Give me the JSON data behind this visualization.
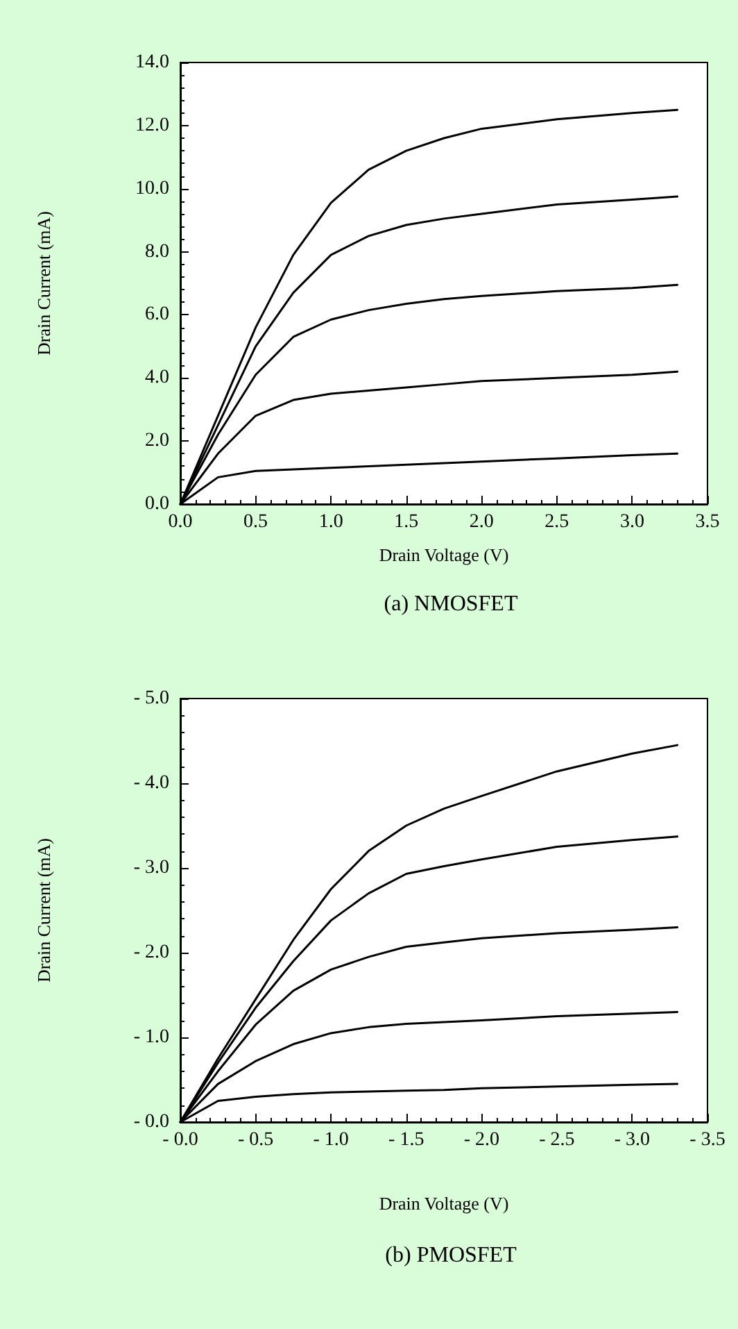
{
  "chart_data": [
    {
      "type": "line",
      "title": "(a) NMOSFET",
      "xlabel": "Drain Voltage (V)",
      "ylabel": "Drain Current (mA)",
      "marker": "none",
      "xlim": [
        0,
        3.5
      ],
      "xticks": [
        {
          "value": 0,
          "label": "0.0"
        },
        {
          "value": 0.5,
          "label": "0.5"
        },
        {
          "value": 1,
          "label": "1.0"
        },
        {
          "value": 1.5,
          "label": "1.5"
        },
        {
          "value": 2,
          "label": "2.0"
        },
        {
          "value": 2.5,
          "label": "2.5"
        },
        {
          "value": 3,
          "label": "3.0"
        },
        {
          "value": 3.5,
          "label": "3.5"
        }
      ],
      "ylim": [
        0,
        14
      ],
      "yticks": [
        {
          "value": 0,
          "label": "0.0"
        },
        {
          "value": 2,
          "label": "2.0"
        },
        {
          "value": 4,
          "label": "4.0"
        },
        {
          "value": 6,
          "label": "6.0"
        },
        {
          "value": 8,
          "label": "8.0"
        },
        {
          "value": 10,
          "label": "10.0"
        },
        {
          "value": 12,
          "label": "12.0"
        },
        {
          "value": 14,
          "label": "14.0"
        }
      ],
      "x": [
        0,
        0.25,
        0.5,
        0.75,
        1,
        1.25,
        1.5,
        1.75,
        2,
        2.5,
        3,
        3.3
      ],
      "series": [
        {
          "color": "#000000",
          "values": [
            0,
            2.8,
            5.6,
            7.9,
            9.55,
            10.6,
            11.2,
            11.6,
            11.9,
            12.2,
            12.4,
            12.5
          ]
        },
        {
          "color": "#000000",
          "values": [
            0,
            2.5,
            5.0,
            6.7,
            7.9,
            8.5,
            8.85,
            9.05,
            9.2,
            9.5,
            9.65,
            9.75
          ]
        },
        {
          "color": "#000000",
          "values": [
            0,
            2.2,
            4.1,
            5.3,
            5.85,
            6.15,
            6.35,
            6.5,
            6.6,
            6.75,
            6.85,
            6.95
          ]
        },
        {
          "color": "#000000",
          "values": [
            0,
            1.6,
            2.8,
            3.3,
            3.5,
            3.6,
            3.7,
            3.8,
            3.9,
            4.0,
            4.1,
            4.2
          ]
        },
        {
          "color": "#000000",
          "values": [
            0,
            0.85,
            1.05,
            1.1,
            1.15,
            1.2,
            1.25,
            1.3,
            1.35,
            1.45,
            1.55,
            1.6
          ]
        }
      ]
    },
    {
      "type": "line",
      "title": "(b) PMOSFET",
      "xlabel": "Drain Voltage (V)",
      "ylabel": "Drain Current (mA)",
      "marker": "none",
      "xlim": [
        0,
        -3.5
      ],
      "xticks": [
        {
          "value": 0,
          "label": "- 0.0"
        },
        {
          "value": -0.5,
          "label": "- 0.5"
        },
        {
          "value": -1,
          "label": "- 1.0"
        },
        {
          "value": -1.5,
          "label": "- 1.5"
        },
        {
          "value": -2,
          "label": "- 2.0"
        },
        {
          "value": -2.5,
          "label": "- 2.5"
        },
        {
          "value": -3,
          "label": "- 3.0"
        },
        {
          "value": -3.5,
          "label": "- 3.5"
        }
      ],
      "ylim": [
        0,
        -5
      ],
      "yticks": [
        {
          "value": 0,
          "label": "- 0.0"
        },
        {
          "value": -1,
          "label": "- 1.0"
        },
        {
          "value": -2,
          "label": "- 2.0"
        },
        {
          "value": -3,
          "label": "- 3.0"
        },
        {
          "value": -4,
          "label": "- 4.0"
        },
        {
          "value": -5,
          "label": "- 5.0"
        }
      ],
      "x": [
        0,
        -0.25,
        -0.5,
        -0.75,
        -1,
        -1.25,
        -1.5,
        -1.75,
        -2,
        -2.5,
        -3,
        -3.3
      ],
      "series": [
        {
          "color": "#000000",
          "values": [
            0,
            -0.75,
            -1.45,
            -2.15,
            -2.75,
            -3.2,
            -3.5,
            -3.7,
            -3.85,
            -4.14,
            -4.35,
            -4.45
          ]
        },
        {
          "color": "#000000",
          "values": [
            0,
            -0.7,
            -1.35,
            -1.9,
            -2.38,
            -2.7,
            -2.93,
            -3.02,
            -3.1,
            -3.25,
            -3.33,
            -3.37
          ]
        },
        {
          "color": "#000000",
          "values": [
            0,
            -0.6,
            -1.15,
            -1.55,
            -1.8,
            -1.95,
            -2.07,
            -2.12,
            -2.17,
            -2.23,
            -2.27,
            -2.3
          ]
        },
        {
          "color": "#000000",
          "values": [
            0,
            -0.45,
            -0.72,
            -0.92,
            -1.05,
            -1.12,
            -1.16,
            -1.18,
            -1.2,
            -1.25,
            -1.28,
            -1.3
          ]
        },
        {
          "color": "#000000",
          "values": [
            0,
            -0.25,
            -0.3,
            -0.33,
            -0.35,
            -0.36,
            -0.37,
            -0.38,
            -0.4,
            -0.42,
            -0.44,
            -0.45
          ]
        }
      ]
    }
  ]
}
